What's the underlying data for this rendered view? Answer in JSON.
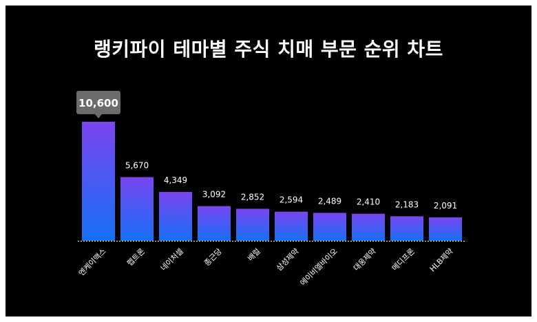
{
  "title": "랭키파이 테마별 주식 치매 부문 순위 차트",
  "colors": {
    "background": "#000000",
    "bar_top": "#7b45f0",
    "bar_bottom": "#1570f5",
    "label_text": "#ffffff",
    "highlight_box": "#6b6b6b"
  },
  "chart_data": {
    "type": "bar",
    "categories": [
      "엔케이맥스",
      "펩트론",
      "네이처셀",
      "종근당",
      "배럴",
      "삼성제약",
      "에이비엘바이오",
      "대웅제약",
      "메디프론",
      "HLB제약"
    ],
    "values": [
      10600,
      5670,
      4349,
      3092,
      2852,
      2594,
      2489,
      2410,
      2183,
      2091
    ],
    "value_labels": [
      "10,600",
      "5,670",
      "4,349",
      "3,092",
      "2,852",
      "2,594",
      "2,489",
      "2,410",
      "2,183",
      "2,091"
    ],
    "highlight_index": 0,
    "ylim": [
      0,
      10600
    ],
    "grid": false,
    "legend": "none"
  }
}
